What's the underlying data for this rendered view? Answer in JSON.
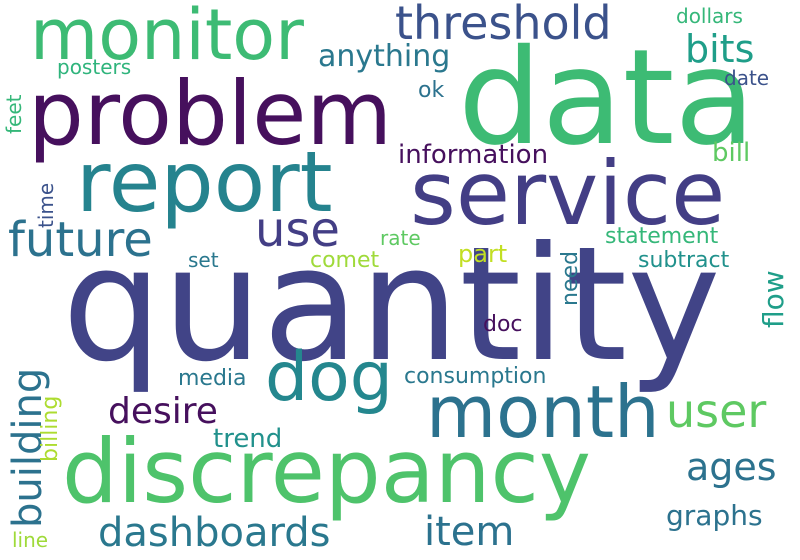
{
  "words": [
    {
      "text": "quantity",
      "color": "#414487",
      "rotated": false
    },
    {
      "text": "data",
      "color": "#3dbb74",
      "rotated": false
    },
    {
      "text": "problem",
      "color": "#46105d",
      "rotated": false
    },
    {
      "text": "service",
      "color": "#433e85",
      "rotated": false
    },
    {
      "text": "report",
      "color": "#25838e",
      "rotated": false
    },
    {
      "text": "discrepancy",
      "color": "#4ec36b",
      "rotated": false
    },
    {
      "text": "monitor",
      "color": "#3dbb74",
      "rotated": false
    },
    {
      "text": "month",
      "color": "#2c728e",
      "rotated": false
    },
    {
      "text": "dog",
      "color": "#24878e",
      "rotated": false
    },
    {
      "text": "threshold",
      "color": "#3b528b",
      "rotated": false
    },
    {
      "text": "future",
      "color": "#2c728e",
      "rotated": false
    },
    {
      "text": "use",
      "color": "#433e85",
      "rotated": false
    },
    {
      "text": "user",
      "color": "#5ec962",
      "rotated": false
    },
    {
      "text": "dashboards",
      "color": "#2a788e",
      "rotated": false
    },
    {
      "text": "desire",
      "color": "#46105d",
      "rotated": false
    },
    {
      "text": "building",
      "color": "#2c728e",
      "rotated": true
    },
    {
      "text": "ages",
      "color": "#2c728e",
      "rotated": false
    },
    {
      "text": "item",
      "color": "#2c728e",
      "rotated": false
    },
    {
      "text": "bits",
      "color": "#1f9e89",
      "rotated": false
    },
    {
      "text": "anything",
      "color": "#2a788e",
      "rotated": false
    },
    {
      "text": "information",
      "color": "#46105d",
      "rotated": false
    },
    {
      "text": "graphs",
      "color": "#2c728e",
      "rotated": false
    },
    {
      "text": "trend",
      "color": "#21918c",
      "rotated": false
    },
    {
      "text": "bill",
      "color": "#5ec962",
      "rotated": false
    },
    {
      "text": "flow",
      "color": "#1f9e89",
      "rotated": true
    },
    {
      "text": "statement",
      "color": "#35b779",
      "rotated": false
    },
    {
      "text": "subtract",
      "color": "#21918c",
      "rotated": false
    },
    {
      "text": "consumption",
      "color": "#2a788e",
      "rotated": false
    },
    {
      "text": "media",
      "color": "#2a788e",
      "rotated": false
    },
    {
      "text": "comet",
      "color": "#9fda3a",
      "rotated": false
    },
    {
      "text": "part",
      "color": "#c2df23",
      "rotated": false
    },
    {
      "text": "need",
      "color": "#2a788e",
      "rotated": true
    },
    {
      "text": "rate",
      "color": "#5ec962",
      "rotated": false
    },
    {
      "text": "ok",
      "color": "#2c728e",
      "rotated": false
    },
    {
      "text": "doc",
      "color": "#46105d",
      "rotated": false
    },
    {
      "text": "dollars",
      "color": "#35b779",
      "rotated": false
    },
    {
      "text": "date",
      "color": "#3b528b",
      "rotated": false
    },
    {
      "text": "posters",
      "color": "#2fb47c",
      "rotated": false
    },
    {
      "text": "set",
      "color": "#2a788e",
      "rotated": false
    },
    {
      "text": "feet",
      "color": "#35b779",
      "rotated": true
    },
    {
      "text": "time",
      "color": "#3b528b",
      "rotated": true
    },
    {
      "text": "billing",
      "color": "#addc30",
      "rotated": true
    },
    {
      "text": "line",
      "color": "#9fda3a",
      "rotated": false
    }
  ]
}
